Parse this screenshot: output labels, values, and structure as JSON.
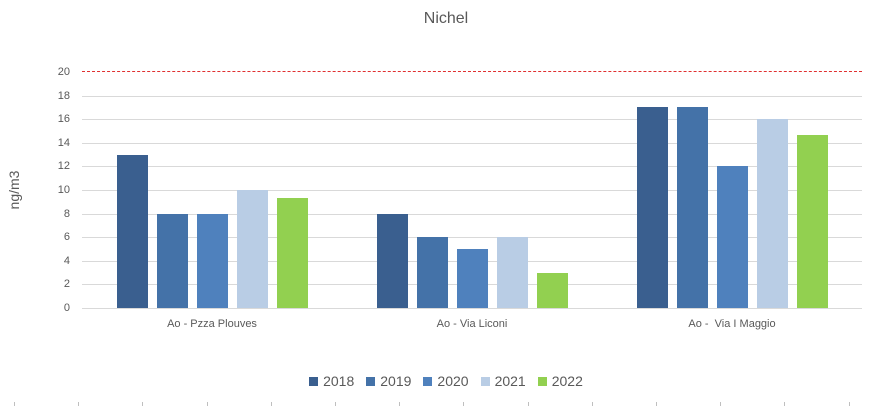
{
  "chart_data": {
    "type": "bar",
    "title": "Nichel",
    "xlabel": "",
    "ylabel": "ng/m3",
    "ylim": [
      0,
      20
    ],
    "yticks": [
      0,
      2,
      4,
      6,
      8,
      10,
      12,
      14,
      16,
      18,
      20
    ],
    "grid": true,
    "legend_position": "bottom",
    "categories": [
      "Ao - Pzza Plouves",
      "Ao - Via Liconi",
      "Ao -  Via I Maggio"
    ],
    "series": [
      {
        "name": "2018",
        "color": "#3a5f8f",
        "values": [
          13,
          8,
          17
        ]
      },
      {
        "name": "2019",
        "color": "#4472a8",
        "values": [
          8,
          6,
          17
        ]
      },
      {
        "name": "2020",
        "color": "#4f81bd",
        "values": [
          8,
          5,
          12
        ]
      },
      {
        "name": "2021",
        "color": "#b9cde5",
        "values": [
          10,
          6,
          16
        ]
      },
      {
        "name": "2022",
        "color": "#92d050",
        "values": [
          9.3,
          3,
          14.7
        ]
      }
    ],
    "annotations": [
      {
        "type": "horizontal-line",
        "y": 20,
        "style": "dashed",
        "color": "#e03030",
        "label": ""
      }
    ]
  }
}
